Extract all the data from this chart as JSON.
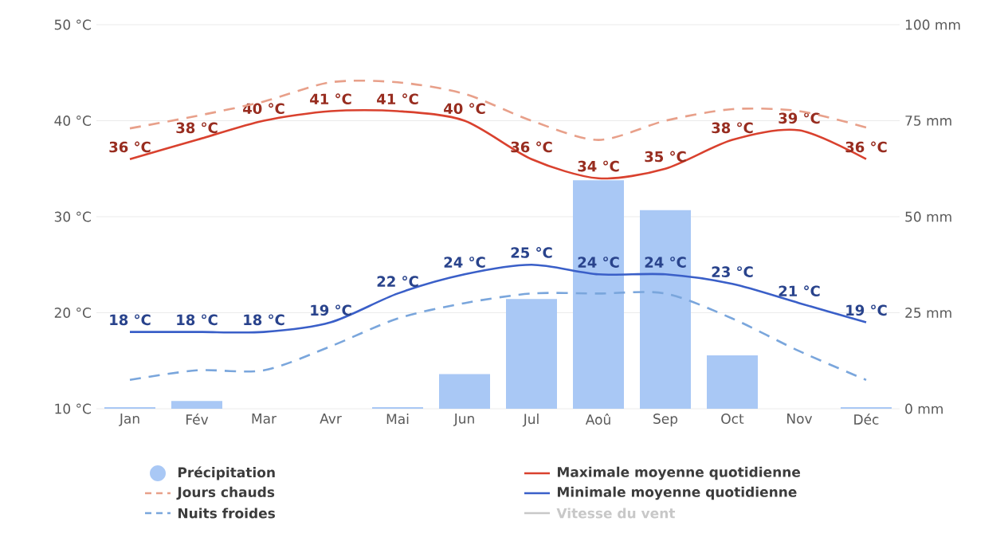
{
  "chart_data": {
    "type": "line",
    "categories": [
      "Jan",
      "Fév",
      "Mar",
      "Avr",
      "Mai",
      "Jun",
      "Jul",
      "Aoû",
      "Sep",
      "Oct",
      "Nov",
      "Déc"
    ],
    "series": [
      {
        "name": "Précipitation",
        "type": "bar",
        "axis": "y2",
        "color": "#a9c8f5",
        "values": [
          0.4,
          2,
          0,
          0,
          0.4,
          9,
          28.6,
          59.5,
          51.7,
          13.9,
          0,
          0.4
        ]
      },
      {
        "name": "Maximale moyenne quotidienne",
        "color": "#d9412e",
        "line_style": "solid",
        "values": [
          36,
          38,
          40,
          41,
          41,
          40,
          36,
          34,
          35,
          38,
          39,
          36
        ],
        "value_labels": [
          "36 °C",
          "38 °C",
          "40 °C",
          "41 °C",
          "41 °C",
          "40 °C",
          "36 °C",
          "34 °C",
          "35 °C",
          "38 °C",
          "39 °C",
          "36 °C"
        ]
      },
      {
        "name": "Jours chauds",
        "color": "#e8a08a",
        "line_style": "dashed",
        "values": [
          39.2,
          40.5,
          42,
          44,
          44,
          42.8,
          40,
          38,
          40,
          41.2,
          41,
          39.3
        ]
      },
      {
        "name": "Minimale moyenne quotidienne",
        "color": "#3a5fc8",
        "line_style": "solid",
        "values": [
          18,
          18,
          18,
          19,
          22,
          24,
          25,
          24,
          24,
          23,
          21,
          19
        ],
        "value_labels": [
          "18 °C",
          "18 °C",
          "18 °C",
          "19 °C",
          "22 °C",
          "24 °C",
          "25 °C",
          "24 °C",
          "24 °C",
          "23 °C",
          "21 °C",
          "19 °C"
        ]
      },
      {
        "name": "Nuits froides",
        "color": "#7aa6dc",
        "line_style": "dashed",
        "values": [
          13,
          14,
          14,
          16.5,
          19.4,
          21,
          22,
          22,
          22,
          19.4,
          16,
          13
        ]
      },
      {
        "name": "Vitesse du vent",
        "color": "#c8c8c8",
        "line_style": "solid",
        "values": [
          null,
          null,
          null,
          null,
          null,
          null,
          null,
          null,
          null,
          null,
          null,
          null
        ]
      }
    ],
    "ylim": [
      10,
      50
    ],
    "yticks": [
      {
        "value": 10,
        "label": "10 °C"
      },
      {
        "value": 20,
        "label": "20 °C"
      },
      {
        "value": 30,
        "label": "30 °C"
      },
      {
        "value": 40,
        "label": "40 °C"
      },
      {
        "value": 50,
        "label": "50 °C"
      }
    ],
    "y2lim": [
      0,
      100
    ],
    "y2ticks": [
      {
        "value": 0,
        "label": "0 mm"
      },
      {
        "value": 25,
        "label": "25 mm"
      },
      {
        "value": 50,
        "label": "50 mm"
      },
      {
        "value": 75,
        "label": "75 mm"
      },
      {
        "value": 100,
        "label": "100 mm"
      }
    ],
    "grid": "y",
    "legend": "bottom"
  }
}
